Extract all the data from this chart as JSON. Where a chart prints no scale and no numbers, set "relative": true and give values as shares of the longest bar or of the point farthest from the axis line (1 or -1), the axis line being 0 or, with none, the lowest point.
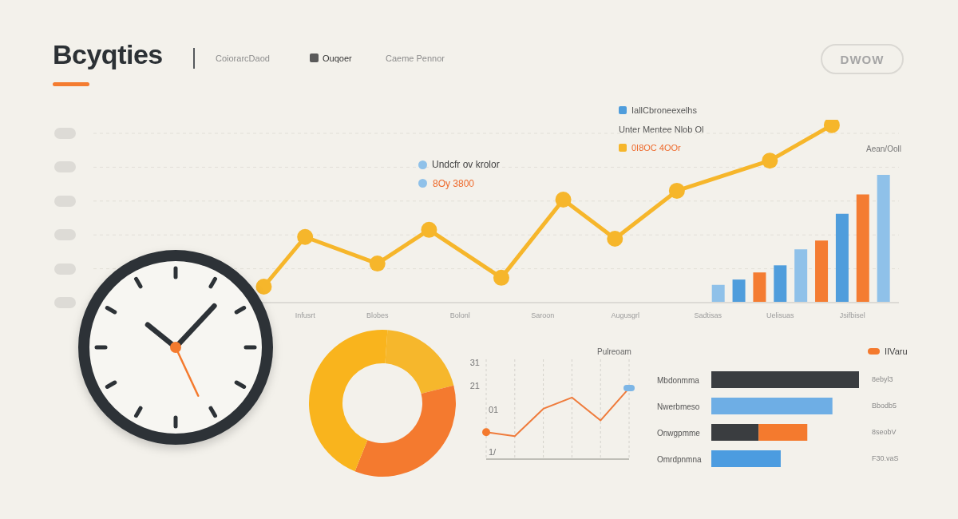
{
  "chart_data": [
    {
      "type": "line",
      "title": "Bcyqties",
      "relative": true,
      "grid": "y",
      "marker": "circle",
      "legend": "top right",
      "categories": [
        null,
        null,
        null,
        null,
        null,
        null,
        null,
        null,
        null,
        null,
        null,
        null,
        null,
        null,
        null,
        null,
        null,
        null,
        null,
        null,
        "Infusrt",
        null,
        null,
        null,
        null,
        null,
        null,
        "Blobes",
        null,
        null,
        null,
        null,
        null,
        null,
        null,
        "Bolonl",
        null,
        null,
        null,
        null,
        null,
        null,
        null,
        "Saroon",
        null,
        null,
        null,
        null,
        null,
        null,
        null,
        "Augusgrl",
        null,
        null,
        null,
        null,
        null,
        null,
        null,
        "Sadtisas",
        null,
        null,
        null,
        null,
        null,
        null,
        "Uelisuas",
        null,
        null,
        null,
        null,
        null,
        null,
        "Jsifbisel",
        null,
        null,
        null,
        null
      ],
      "series": [
        {
          "name": "0I8OC 4OOr",
          "type": "line",
          "color": "#f6b62b",
          "values": [
            null,
            null,
            null,
            null,
            null,
            null,
            null,
            null,
            null,
            null,
            null,
            null,
            null,
            null,
            null,
            null,
            0.09,
            null,
            null,
            null,
            0.37,
            null,
            null,
            null,
            null,
            null,
            null,
            0.22,
            null,
            null,
            null,
            null,
            0.41,
            null,
            null,
            null,
            null,
            null,
            null,
            0.14,
            null,
            null,
            null,
            null,
            null,
            0.58,
            null,
            null,
            null,
            null,
            0.36,
            null,
            null,
            null,
            null,
            null,
            0.63,
            null,
            null,
            null,
            null,
            null,
            null,
            null,
            null,
            0.8,
            null,
            null,
            null,
            null,
            null,
            1,
            null,
            null,
            null,
            null,
            null,
            null
          ]
        },
        {
          "name": "Undcfr ov krolor",
          "type": "bar",
          "color": "#8fc1e9",
          "values": [
            null,
            null,
            null,
            null,
            null,
            null,
            null,
            null,
            null,
            null,
            null,
            null,
            null,
            null,
            null,
            null,
            null,
            null,
            null,
            null,
            null,
            null,
            null,
            null,
            null,
            null,
            null,
            null,
            null,
            null,
            null,
            null,
            null,
            null,
            null,
            null,
            null,
            null,
            null,
            null,
            null,
            null,
            null,
            null,
            null,
            null,
            null,
            null,
            null,
            null,
            null,
            null,
            null,
            null,
            null,
            null,
            null,
            null,
            null,
            null,
            0.1,
            null,
            null,
            null,
            null,
            null,
            null,
            null,
            0.3,
            null,
            null,
            null,
            null,
            null,
            null,
            null,
            0.72,
            null
          ]
        },
        {
          "name": "IallCbroneexelhs",
          "type": "bar",
          "color": "#4f9ddc",
          "values": [
            null,
            null,
            null,
            null,
            null,
            null,
            null,
            null,
            null,
            null,
            null,
            null,
            null,
            null,
            null,
            null,
            null,
            null,
            null,
            null,
            null,
            null,
            null,
            null,
            null,
            null,
            null,
            null,
            null,
            null,
            null,
            null,
            null,
            null,
            null,
            null,
            null,
            null,
            null,
            null,
            null,
            null,
            null,
            null,
            null,
            null,
            null,
            null,
            null,
            null,
            null,
            null,
            null,
            null,
            null,
            null,
            null,
            null,
            null,
            null,
            null,
            null,
            0.13,
            null,
            null,
            null,
            0.21,
            null,
            null,
            null,
            null,
            null,
            0.5,
            null,
            null,
            null,
            null,
            null
          ]
        },
        {
          "type": "bar",
          "color": "#f47c32",
          "values": [
            null,
            null,
            null,
            null,
            null,
            null,
            null,
            null,
            null,
            null,
            null,
            null,
            null,
            null,
            null,
            null,
            null,
            null,
            null,
            null,
            null,
            null,
            null,
            null,
            null,
            null,
            null,
            null,
            null,
            null,
            null,
            null,
            null,
            null,
            null,
            null,
            null,
            null,
            null,
            null,
            null,
            null,
            null,
            null,
            null,
            null,
            null,
            null,
            null,
            null,
            null,
            null,
            null,
            null,
            null,
            null,
            null,
            null,
            null,
            null,
            null,
            null,
            null,
            null,
            0.17,
            null,
            null,
            null,
            null,
            null,
            0.35,
            null,
            null,
            null,
            0.61,
            null,
            null,
            null
          ]
        }
      ],
      "annotations": [
        "CoiorarcDaod",
        "Ouqoer",
        "Caeme Pennor",
        "DWOW",
        "Unter Mentee Nlob Ol",
        "8Oy 3800",
        "Aean/Ooll"
      ]
    },
    {
      "type": "donut",
      "categories": [
        null,
        null,
        null
      ],
      "values": [
        20,
        35,
        45
      ],
      "colors": [
        "#f6b72c",
        "#f47a2f",
        "#f9b41d"
      ]
    },
    {
      "type": "line",
      "title": "Pulreoam",
      "categories": [
        null,
        null,
        null,
        null,
        null,
        null
      ],
      "ylim": [
        -10.2,
        32.4
      ],
      "yticks": [
        21,
        31
      ],
      "grid": "x",
      "series": [
        {
          "type": "line",
          "color": "#ef7b3b",
          "marker": "none",
          "values": [
            1.3,
            -0.4,
            11.3,
            16.1,
            6.3,
            20.1
          ]
        },
        {
          "type": "scatter",
          "color": "#f47a2e",
          "marker": "circle",
          "values": [
            1.3,
            null,
            null,
            null,
            null,
            null
          ]
        },
        {
          "type": "scatter",
          "color": "#7db6e6",
          "marker": "square",
          "values": [
            null,
            null,
            null,
            null,
            null,
            20.1
          ]
        }
      ],
      "annotations": [
        "01",
        "1/"
      ]
    },
    {
      "type": "bar",
      "orientation": "horizontal",
      "stacked": true,
      "relative": true,
      "legend": "top right",
      "categories": [
        "Mbdonmma",
        "Nwerbmeso",
        "Onwgpmme",
        "Omrdpnmna"
      ],
      "series": [
        {
          "color": "#3a3d40",
          "values": [
            1,
            null,
            0.32,
            null
          ]
        },
        {
          "color": "#6eaee5",
          "values": [
            null,
            0.82,
            null,
            null
          ]
        },
        {
          "name": "IIVaru",
          "color": "#f47a2e",
          "values": [
            null,
            null,
            0.33,
            null
          ]
        },
        {
          "color": "#4c9ce0",
          "values": [
            null,
            null,
            null,
            0.47
          ]
        }
      ],
      "annotations": [
        "8ebyl3",
        "Bbodb5",
        "8seobV",
        "F30.vaS"
      ]
    }
  ]
}
